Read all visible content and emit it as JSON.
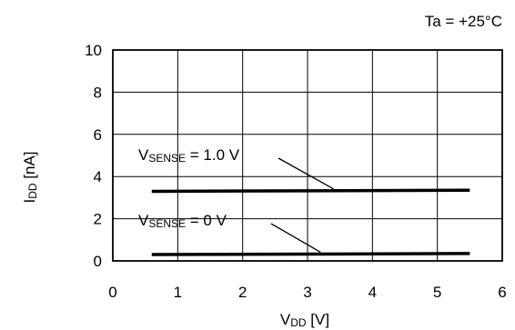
{
  "chart_data": {
    "type": "line",
    "condition": "Ta = +25°C",
    "xlabel": {
      "main": "V",
      "sub": "DD",
      "unit": " [V]"
    },
    "ylabel": {
      "main": "I",
      "sub": "DD",
      "unit": " [nA]"
    },
    "xlim": [
      0,
      6
    ],
    "ylim": [
      0,
      10
    ],
    "x_ticks": [
      0,
      1,
      2,
      3,
      4,
      5,
      6
    ],
    "y_ticks": [
      0,
      2,
      4,
      6,
      8,
      10
    ],
    "grid": true,
    "series": [
      {
        "label": {
          "main": "V",
          "sub": "SENSE",
          "value": " = 1.0 V"
        },
        "x": [
          0.6,
          5.5
        ],
        "y": [
          3.3,
          3.35
        ],
        "pointer_to_x": 3.4
      },
      {
        "label": {
          "main": "V",
          "sub": "SENSE",
          "value": " = 0 V"
        },
        "x": [
          0.6,
          5.5
        ],
        "y": [
          0.3,
          0.35
        ],
        "pointer_to_x": 3.2
      }
    ]
  }
}
